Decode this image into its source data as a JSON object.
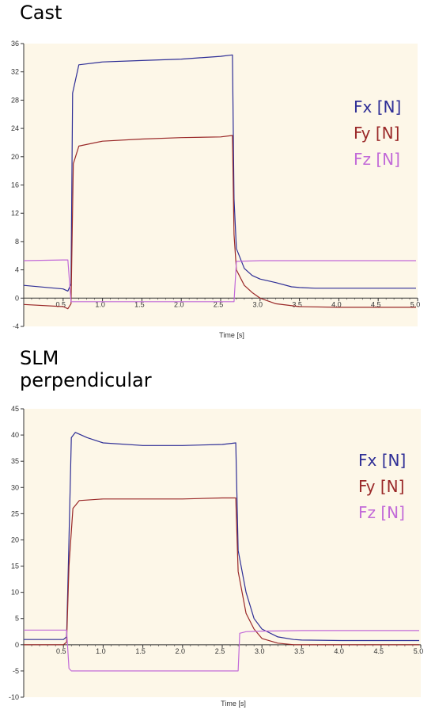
{
  "panel_titles": {
    "cast": "Cast",
    "slm_line1": "SLM",
    "slm_line2": "perpendicular"
  },
  "colors": {
    "plot_bg": "#fdf7e8",
    "fx": "#2e2e96",
    "fy": "#9a2828",
    "fz": "#c26ad8",
    "axis": "#333333"
  },
  "chart_data": [
    {
      "type": "line",
      "title": "Cast",
      "xlabel": "Time [s]",
      "ylabel": "",
      "xlim": [
        0,
        5.0
      ],
      "ylim": [
        -4,
        36
      ],
      "xticks": [
        0.5,
        1.0,
        1.5,
        2.0,
        2.5,
        3.0,
        3.5,
        4.0,
        4.5,
        5.0
      ],
      "xtick_labels": [
        "0.5",
        "1.0",
        "1.5",
        "2.0",
        "2.5",
        "3.0",
        "3.5",
        "4.0",
        "4.5",
        "5.0"
      ],
      "yticks": [
        -4,
        0,
        4,
        8,
        12,
        16,
        20,
        24,
        28,
        32,
        36
      ],
      "ytick_labels": [
        "-4",
        "0",
        "4",
        "8",
        "12",
        "16",
        "20",
        "24",
        "28",
        "32",
        "36"
      ],
      "legend_position": "right",
      "series": [
        {
          "name": "Fx [N]",
          "color": "#2e2e96",
          "x": [
            0,
            0.5,
            0.56,
            0.6,
            0.62,
            0.7,
            1.0,
            1.5,
            2.0,
            2.5,
            2.65,
            2.67,
            2.7,
            2.8,
            2.9,
            3.0,
            3.2,
            3.4,
            3.5,
            3.7,
            4.0,
            4.5,
            4.98
          ],
          "y": [
            1.8,
            1.3,
            1.0,
            2.0,
            29.0,
            33.0,
            33.4,
            33.6,
            33.8,
            34.2,
            34.4,
            14.0,
            7.0,
            4.2,
            3.2,
            2.7,
            2.2,
            1.6,
            1.5,
            1.4,
            1.4,
            1.4,
            1.4
          ]
        },
        {
          "name": "Fy [N]",
          "color": "#9a2828",
          "x": [
            0,
            0.5,
            0.56,
            0.6,
            0.63,
            0.7,
            1.0,
            1.5,
            2.0,
            2.5,
            2.65,
            2.67,
            2.7,
            2.8,
            2.9,
            3.0,
            3.2,
            3.5,
            4.0,
            4.5,
            4.98
          ],
          "y": [
            -0.9,
            -1.2,
            -1.5,
            -0.8,
            19.0,
            21.5,
            22.2,
            22.5,
            22.7,
            22.8,
            23.0,
            9.0,
            4.0,
            1.8,
            0.8,
            0.0,
            -0.8,
            -1.2,
            -1.3,
            -1.3,
            -1.3
          ]
        },
        {
          "name": "Fz [N]",
          "color": "#c26ad8",
          "x": [
            0,
            0.5,
            0.56,
            0.6,
            1.0,
            1.5,
            2.0,
            2.5,
            2.67,
            2.7,
            3.0,
            3.5,
            4.0,
            4.5,
            4.98
          ],
          "y": [
            5.3,
            5.4,
            5.4,
            -0.5,
            -0.5,
            -0.5,
            -0.5,
            -0.5,
            -0.5,
            5.2,
            5.3,
            5.3,
            5.3,
            5.3,
            5.3
          ]
        }
      ]
    },
    {
      "type": "line",
      "title": "SLM perpendicular",
      "xlabel": "Time [s]",
      "ylabel": "",
      "xlim": [
        0,
        5.0
      ],
      "ylim": [
        -10,
        45
      ],
      "xticks": [
        0.5,
        1.0,
        1.5,
        2.0,
        2.5,
        3.0,
        3.5,
        4.0,
        4.5,
        5.0
      ],
      "xtick_labels": [
        "0.5",
        "1.0",
        "1.5",
        "2.0",
        "2.5",
        "3.0",
        "3.5",
        "4.0",
        "4.5",
        "5.0"
      ],
      "yticks": [
        -10,
        -5,
        0,
        5,
        10,
        15,
        20,
        25,
        30,
        35,
        40,
        45
      ],
      "ytick_labels": [
        "-10",
        "-5",
        "0",
        "5",
        "10",
        "15",
        "20",
        "25",
        "30",
        "35",
        "40",
        "45"
      ],
      "legend_position": "right",
      "series": [
        {
          "name": "Fx [N]",
          "color": "#2e2e96",
          "x": [
            0,
            0.5,
            0.54,
            0.57,
            0.6,
            0.65,
            0.8,
            1.0,
            1.5,
            2.0,
            2.5,
            2.67,
            2.7,
            2.8,
            2.9,
            3.0,
            3.2,
            3.4,
            3.5,
            4.0,
            4.5,
            4.98
          ],
          "y": [
            1.0,
            1.0,
            1.5,
            20.0,
            39.5,
            40.5,
            39.5,
            38.5,
            38.0,
            38.0,
            38.2,
            38.5,
            18.0,
            10.0,
            5.0,
            3.0,
            1.5,
            1.0,
            0.9,
            0.8,
            0.8,
            0.8
          ]
        },
        {
          "name": "Fy [N]",
          "color": "#9a2828",
          "x": [
            0,
            0.5,
            0.54,
            0.57,
            0.62,
            0.7,
            1.0,
            1.5,
            2.0,
            2.5,
            2.67,
            2.7,
            2.8,
            2.9,
            3.0,
            3.2,
            3.4,
            3.5,
            4.0,
            4.5,
            4.98
          ],
          "y": [
            0.0,
            0.0,
            0.5,
            15.0,
            26.0,
            27.5,
            27.8,
            27.8,
            27.8,
            28.0,
            28.0,
            14.0,
            6.0,
            3.0,
            1.2,
            0.3,
            0.0,
            0.0,
            0.0,
            0.0,
            0.0
          ]
        },
        {
          "name": "Fz [N]",
          "color": "#c26ad8",
          "x": [
            0,
            0.5,
            0.54,
            0.57,
            0.6,
            1.0,
            1.5,
            2.0,
            2.5,
            2.7,
            2.72,
            2.8,
            3.0,
            3.5,
            4.0,
            4.5,
            4.98
          ],
          "y": [
            2.8,
            2.8,
            2.8,
            -4.5,
            -5.0,
            -5.0,
            -5.0,
            -5.0,
            -5.0,
            -5.0,
            2.2,
            2.5,
            2.6,
            2.7,
            2.7,
            2.7,
            2.7
          ]
        }
      ]
    }
  ]
}
